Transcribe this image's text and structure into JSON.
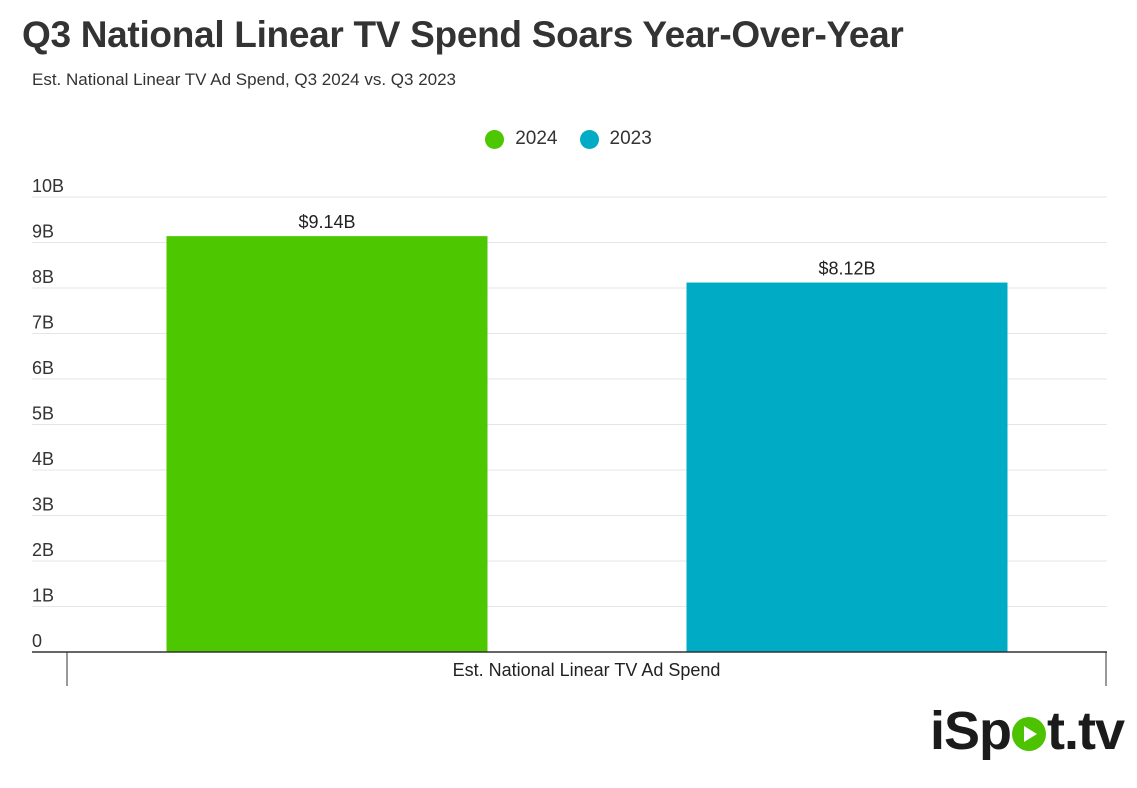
{
  "header": {
    "title": "Q3 National Linear TV Spend Soars Year-Over-Year",
    "subtitle": "Est. National Linear TV Ad Spend, Q3 2024 vs. Q3 2023"
  },
  "legend": [
    {
      "label": "2024",
      "color": "#4cc700"
    },
    {
      "label": "2023",
      "color": "#00abc6"
    }
  ],
  "chart_data": {
    "type": "bar",
    "title": "Q3 National Linear TV Spend Soars Year-Over-Year",
    "subtitle": "Est. National Linear TV Ad Spend, Q3 2024 vs. Q3 2023",
    "categories": [
      "Est. National Linear TV Ad Spend"
    ],
    "series": [
      {
        "name": "2024",
        "values": [
          9.14
        ],
        "labels": [
          "$9.14B"
        ],
        "color": "#4cc700"
      },
      {
        "name": "2023",
        "values": [
          8.12
        ],
        "labels": [
          "$8.12B"
        ],
        "color": "#00abc6"
      }
    ],
    "yticks": [
      "0",
      "1B",
      "2B",
      "3B",
      "4B",
      "5B",
      "6B",
      "7B",
      "8B",
      "9B",
      "10B"
    ],
    "ylim": [
      0,
      10
    ],
    "xlabel": "",
    "ylabel": "",
    "grid": true,
    "legend_position": "top-center"
  },
  "branding": {
    "logo_prefix": "iSp",
    "logo_suffix": "t.tv",
    "logo_accent_color": "#4cc200"
  }
}
